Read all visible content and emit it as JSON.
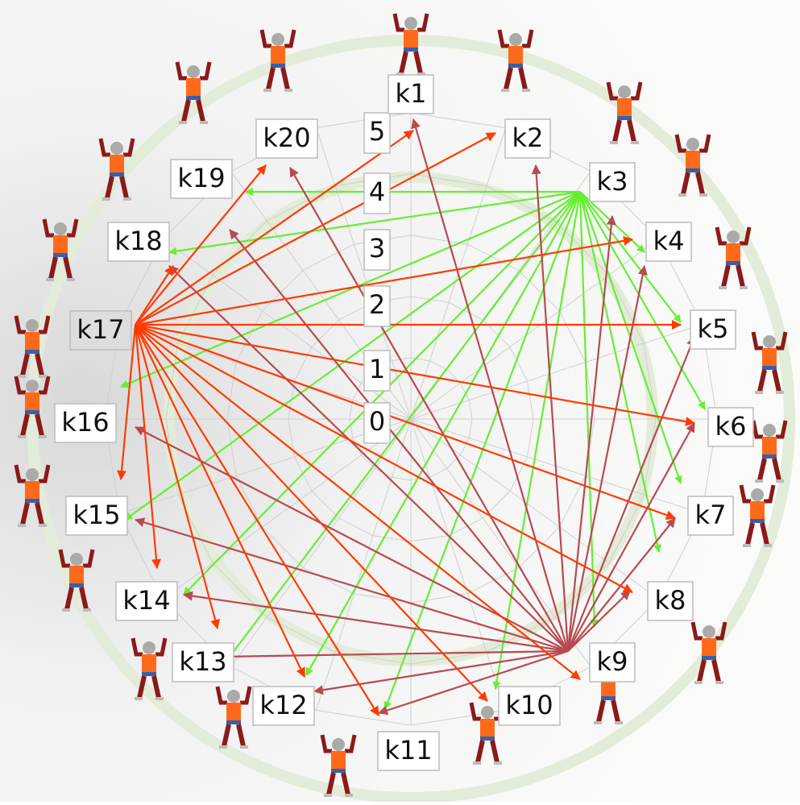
{
  "nodes": [
    {
      "label": "k1"
    },
    {
      "label": "k2"
    },
    {
      "label": "k3"
    },
    {
      "label": "k4"
    },
    {
      "label": "k5"
    },
    {
      "label": "k6"
    },
    {
      "label": "k7"
    },
    {
      "label": "k8"
    },
    {
      "label": "k9"
    },
    {
      "label": "k10"
    },
    {
      "label": "k11"
    },
    {
      "label": "k12"
    },
    {
      "label": "k13"
    },
    {
      "label": "k14"
    },
    {
      "label": "k15"
    },
    {
      "label": "k16"
    },
    {
      "label": "k17"
    },
    {
      "label": "k18"
    },
    {
      "label": "k19"
    },
    {
      "label": "k20"
    }
  ],
  "scale_labels": [
    "0",
    "1",
    "2",
    "3",
    "4",
    "5"
  ]
}
